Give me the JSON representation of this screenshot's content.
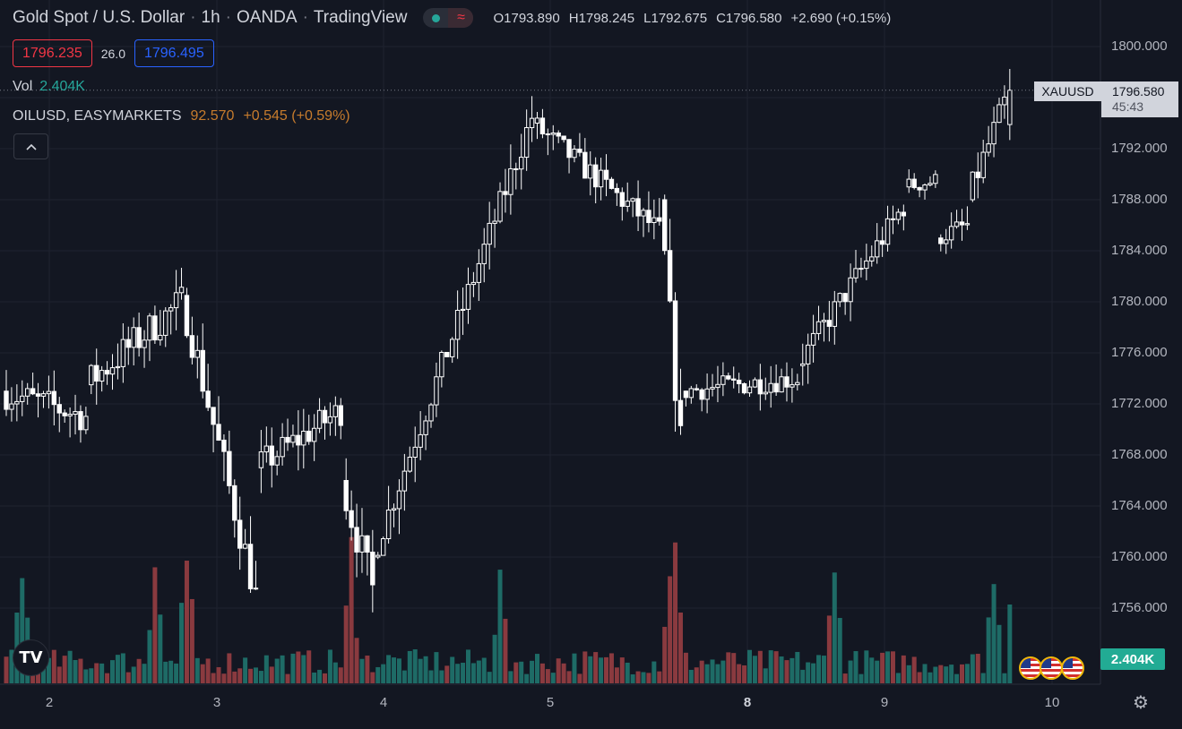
{
  "header": {
    "symbol_title": "Gold Spot / U.S. Dollar",
    "interval": "1h",
    "broker": "OANDA",
    "platform": "TradingView",
    "ohlc": {
      "o_label": "O",
      "o": "1793.890",
      "h_label": "H",
      "h": "1798.245",
      "l_label": "L",
      "l": "1792.675",
      "c_label": "C",
      "c": "1796.580",
      "change": "+2.690 (+0.15%)"
    },
    "status_wave_icon": "≈"
  },
  "prices": {
    "sell": "1796.235",
    "spread": "26.0",
    "buy": "1796.495"
  },
  "volume_legend": {
    "label": "Vol",
    "value": "2.404K"
  },
  "overlay_legend": {
    "symbol": "OILUSD, EASYMARKETS",
    "value": "92.570",
    "change": "+0.545 (+0.59%)"
  },
  "collapse_icon": "chevron-up-icon",
  "price_axis": {
    "ticks": [
      "1800.000",
      "1796.000",
      "1792.000",
      "1788.000",
      "1784.000",
      "1780.000",
      "1776.000",
      "1772.000",
      "1768.000",
      "1764.000",
      "1760.000",
      "1756.000"
    ]
  },
  "time_axis": {
    "labels": [
      "2",
      "3",
      "4",
      "5",
      "8",
      "9",
      "10"
    ],
    "bold": [
      "8"
    ]
  },
  "last_price": {
    "symbol": "XAUUSD",
    "price": "1796.580",
    "countdown": "45:43"
  },
  "volume_tag": "2.404K",
  "colors": {
    "bg": "#131722",
    "up_candle": "#ffffff",
    "down_candle": "#ffffff",
    "vol_up": "#1e6b66",
    "vol_down": "#8a3a3f",
    "accent_green": "#26a69a",
    "accent_red": "#f23645",
    "accent_blue": "#2962ff",
    "oil": "#c77c2d"
  },
  "chart_data": {
    "type": "candlestick",
    "title": "Gold Spot / U.S. Dollar",
    "interval": "1h",
    "ylim": [
      1752,
      1802
    ],
    "x_labels": [
      "2",
      "3",
      "4",
      "5",
      "8",
      "9",
      "10"
    ],
    "series": [
      {
        "name": "XAUUSD",
        "segments": [
          {
            "from": 0,
            "to": 16,
            "start": 1773.0,
            "end": 1771.0,
            "noise": 2.6,
            "wick": 1.8
          },
          {
            "from": 16,
            "to": 34,
            "start": 1773.5,
            "end": 1780.0,
            "noise": 2.8,
            "wick": 2.0
          },
          {
            "from": 34,
            "to": 48,
            "start": 1780.5,
            "end": 1757.0,
            "noise": 3.0,
            "wick": 2.4
          },
          {
            "from": 48,
            "to": 64,
            "start": 1767.0,
            "end": 1771.5,
            "noise": 2.5,
            "wick": 2.0
          },
          {
            "from": 64,
            "to": 70,
            "start": 1766.0,
            "end": 1757.5,
            "noise": 3.2,
            "wick": 2.4
          },
          {
            "from": 70,
            "to": 100,
            "start": 1760.0,
            "end": 1794.5,
            "noise": 2.2,
            "wick": 2.0
          },
          {
            "from": 100,
            "to": 124,
            "start": 1794.0,
            "end": 1785.5,
            "noise": 2.0,
            "wick": 1.8
          },
          {
            "from": 124,
            "to": 128,
            "start": 1788.0,
            "end": 1769.0,
            "noise": 3.5,
            "wick": 2.6
          },
          {
            "from": 128,
            "to": 150,
            "start": 1773.0,
            "end": 1774.0,
            "noise": 1.8,
            "wick": 1.5
          },
          {
            "from": 150,
            "to": 170,
            "start": 1775.0,
            "end": 1787.5,
            "noise": 2.0,
            "wick": 1.8
          },
          {
            "from": 170,
            "to": 176,
            "start": 1789.0,
            "end": 1789.5,
            "noise": 1.4,
            "wick": 1.2
          },
          {
            "from": 176,
            "to": 182,
            "start": 1785.0,
            "end": 1786.0,
            "noise": 1.6,
            "wick": 1.4
          },
          {
            "from": 182,
            "to": 190,
            "start": 1788.0,
            "end": 1796.6,
            "noise": 2.2,
            "wick": 1.8
          }
        ],
        "last": {
          "open": 1793.89,
          "high": 1798.245,
          "low": 1792.675,
          "close": 1796.58
        }
      }
    ],
    "volume": {
      "name": "Vol",
      "last": 2404,
      "peaks": [
        3,
        28,
        34,
        65,
        93,
        125,
        126,
        156,
        186
      ]
    }
  }
}
